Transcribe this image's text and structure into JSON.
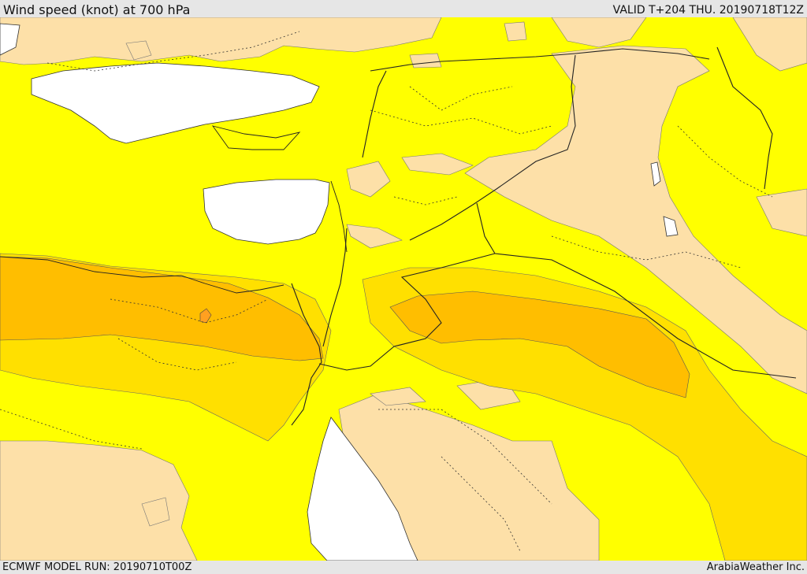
{
  "header": {
    "title": "Wind speed (knot) at 700 hPa",
    "valid": "VALID T+204 THU. 20190718T12Z"
  },
  "footer": {
    "model_run": "ECMWF MODEL RUN: 20190710T00Z",
    "credit": "ArabiaWeather Inc."
  },
  "map": {
    "palette": {
      "sea": "#ffffff",
      "calm": "#fde0a8",
      "light": "#ffff00",
      "moderate": "#ffe000",
      "strong": "#ffbe00",
      "strongest": "#ffa020"
    },
    "features": [
      "wind-speed-shading",
      "country-borders",
      "province-borders",
      "coastlines"
    ]
  }
}
